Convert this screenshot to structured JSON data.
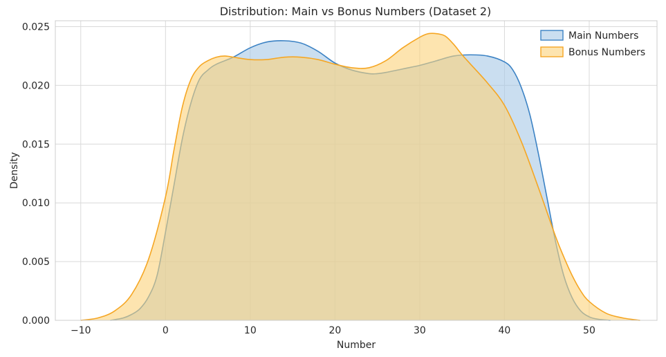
{
  "chart_data": {
    "type": "area",
    "title": "Distribution: Main vs Bonus Numbers (Dataset 2)",
    "xlabel": "Number",
    "ylabel": "Density",
    "xlim": [
      -13,
      58
    ],
    "ylim": [
      0,
      0.0255
    ],
    "x_ticks": [
      -10,
      0,
      10,
      20,
      30,
      40,
      50
    ],
    "x_tick_labels": [
      "−10",
      "0",
      "10",
      "20",
      "30",
      "40",
      "50"
    ],
    "y_ticks": [
      0,
      0.005,
      0.01,
      0.015,
      0.02,
      0.025
    ],
    "y_tick_labels": [
      "0.000",
      "0.005",
      "0.010",
      "0.015",
      "0.020",
      "0.025"
    ],
    "grid": true,
    "legend_position": "top-right",
    "series": [
      {
        "name": "Main Numbers",
        "line_color": "#3b82c4",
        "fill_color": "#a7c8e6",
        "x": [
          -6.5,
          -5,
          -4,
          -3,
          -2,
          -1,
          0,
          1,
          2,
          3,
          4,
          5,
          6,
          8,
          10,
          12,
          14,
          16,
          18,
          20,
          22,
          24,
          25,
          26,
          28,
          30,
          32,
          34,
          36,
          38,
          40,
          41,
          42,
          43,
          44,
          45,
          46,
          47,
          48,
          49,
          50,
          51,
          52.5
        ],
        "y": [
          0,
          0.0002,
          0.0005,
          0.001,
          0.002,
          0.0038,
          0.0075,
          0.0115,
          0.0155,
          0.0185,
          0.0205,
          0.0213,
          0.0218,
          0.0224,
          0.0232,
          0.0237,
          0.0238,
          0.0236,
          0.0229,
          0.0219,
          0.0213,
          0.021,
          0.021,
          0.0211,
          0.0214,
          0.0217,
          0.0221,
          0.0225,
          0.0226,
          0.0225,
          0.022,
          0.0213,
          0.0198,
          0.0175,
          0.0142,
          0.0105,
          0.0068,
          0.0038,
          0.0019,
          0.0008,
          0.0003,
          0.0001,
          0
        ]
      },
      {
        "name": "Bonus Numbers",
        "line_color": "#f5a623",
        "fill_color": "#fbd27a",
        "x": [
          -10,
          -8,
          -6,
          -4,
          -2,
          0,
          1,
          2,
          3,
          4,
          5,
          6,
          7,
          8,
          10,
          12,
          14,
          16,
          18,
          20,
          22,
          24,
          26,
          28,
          30,
          31,
          32,
          33,
          34,
          35,
          36,
          38,
          40,
          42,
          44,
          46,
          47,
          48,
          49,
          50,
          52,
          54,
          56
        ],
        "y": [
          0,
          0.0002,
          0.0008,
          0.0022,
          0.0052,
          0.0105,
          0.0145,
          0.0182,
          0.0205,
          0.0216,
          0.0221,
          0.0224,
          0.0225,
          0.0224,
          0.0222,
          0.0222,
          0.0224,
          0.0224,
          0.0222,
          0.0218,
          0.0215,
          0.0215,
          0.0221,
          0.0232,
          0.0241,
          0.0244,
          0.0244,
          0.0242,
          0.0235,
          0.0226,
          0.0218,
          0.0202,
          0.0183,
          0.0152,
          0.0113,
          0.0072,
          0.0054,
          0.0038,
          0.0025,
          0.0016,
          0.0006,
          0.0002,
          0
        ]
      }
    ]
  }
}
